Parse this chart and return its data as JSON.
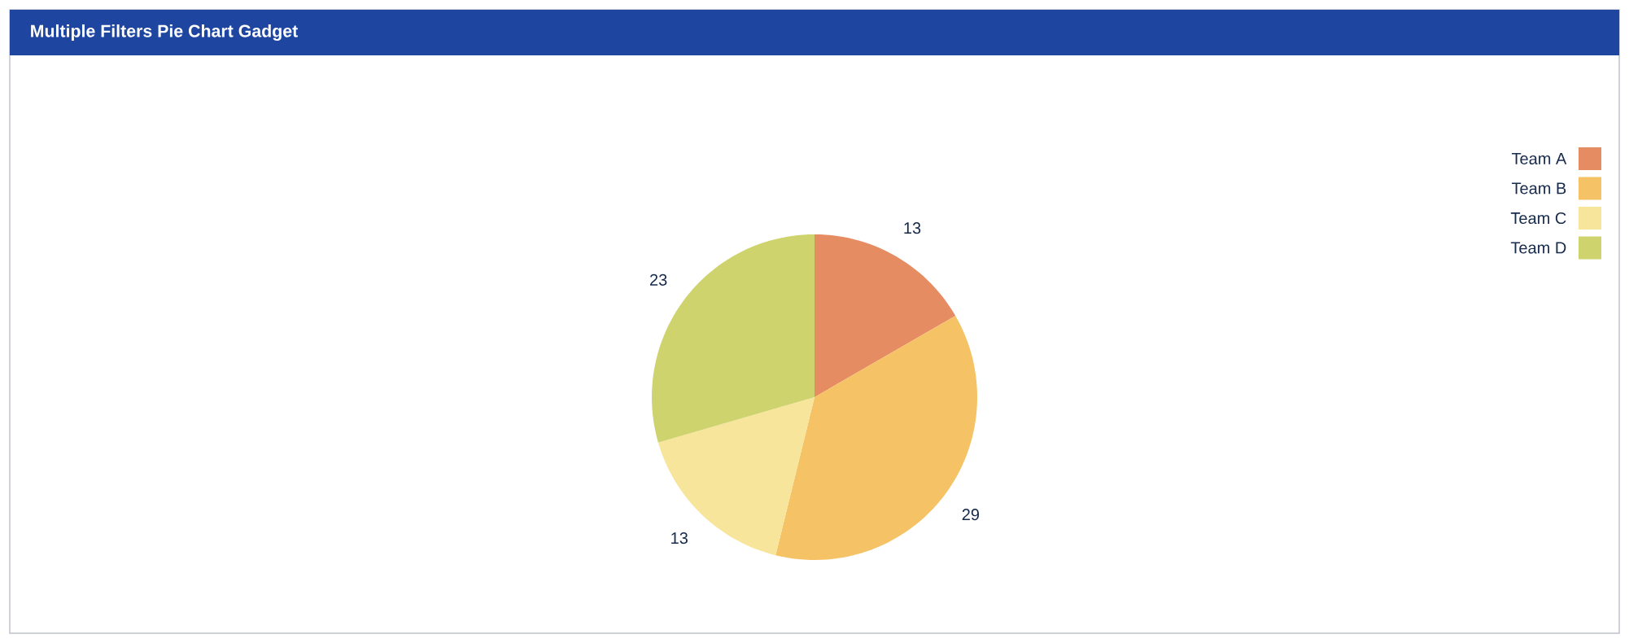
{
  "chart_data": {
    "type": "pie",
    "title": "Multiple Filters Pie Chart Gadget",
    "categories": [
      "Team A",
      "Team B",
      "Team C",
      "Team D"
    ],
    "values": [
      13,
      29,
      13,
      23
    ],
    "colors": [
      "#e68c63",
      "#f5c266",
      "#f7e59b",
      "#cfd36e"
    ],
    "data_labels": true,
    "legend": "top right"
  }
}
